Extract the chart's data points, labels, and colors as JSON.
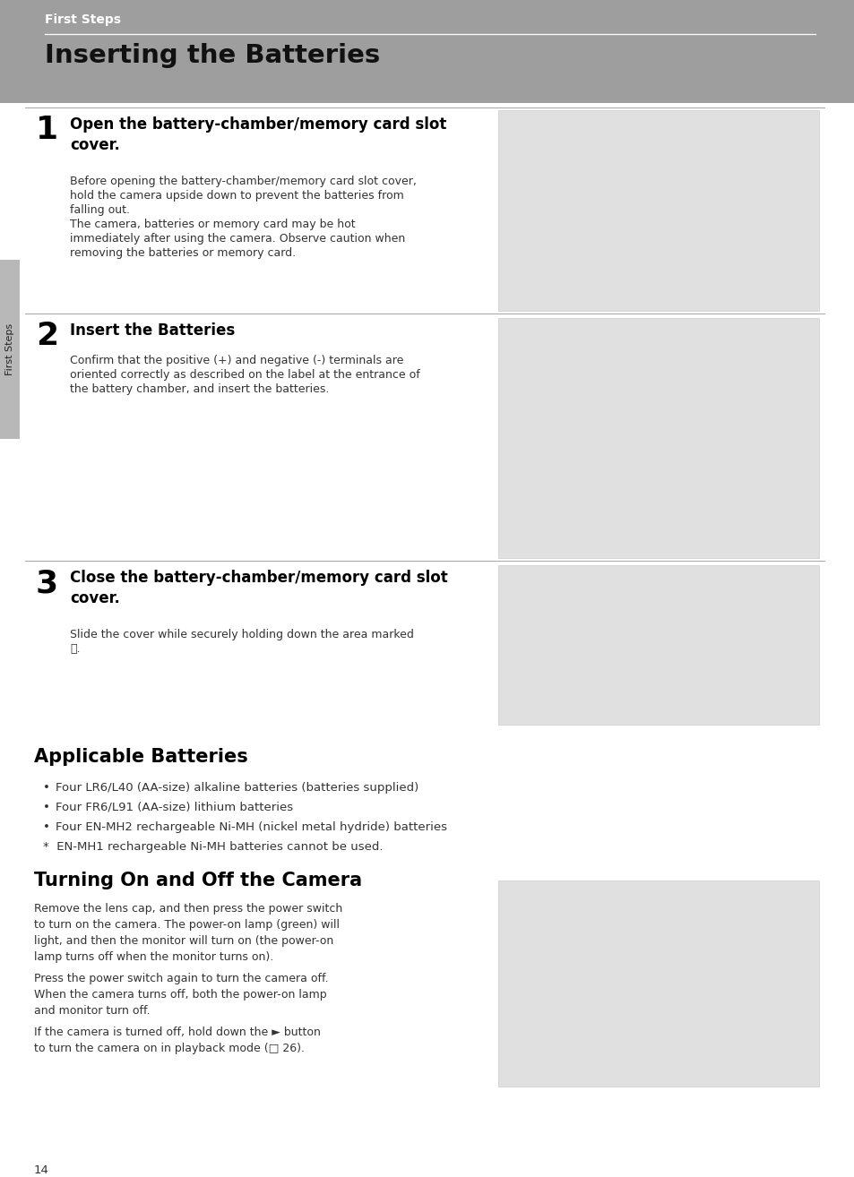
{
  "page_bg": "#ffffff",
  "header_bg": "#9e9e9e",
  "header_text": "First Steps",
  "header_text_color": "#ffffff",
  "title_text": "Inserting the Batteries",
  "title_color": "#111111",
  "sidebar_bg": "#b8b8b8",
  "sidebar_text": "First Steps",
  "sidebar_text_color": "#222222",
  "step1_num": "1",
  "step1_heading": "Open the battery-chamber/memory card slot\ncover.",
  "step1_body_lines": [
    "Before opening the battery-chamber/memory card slot cover,",
    "hold the camera upside down to prevent the batteries from",
    "falling out.",
    "The camera, batteries or memory card may be hot",
    "immediately after using the camera. Observe caution when",
    "removing the batteries or memory card."
  ],
  "step2_num": "2",
  "step2_heading": "Insert the Batteries",
  "step2_body_lines": [
    "Confirm that the positive (+) and negative (-) terminals are",
    "oriented correctly as described on the label at the entrance of",
    "the battery chamber, and insert the batteries."
  ],
  "step3_num": "3",
  "step3_heading": "Close the battery-chamber/memory card slot\ncover.",
  "step3_body_lines": [
    "Slide the cover while securely holding down the area marked",
    "Ⓐ."
  ],
  "section2_title": "Applicable Batteries",
  "bullets": [
    "Four LR6/L40 (AA-size) alkaline batteries (batteries supplied)",
    "Four FR6/L91 (AA-size) lithium batteries",
    "Four EN-MH2 rechargeable Ni-MH (nickel metal hydride) batteries"
  ],
  "note": "*  EN-MH1 rechargeable Ni-MH batteries cannot be used.",
  "section3_title": "Turning On and Off the Camera",
  "turning_body_lines": [
    "Remove the lens cap, and then press the power switch",
    "to turn on the camera. The power-on lamp (green) will",
    "light, and then the monitor will turn on (the power-on",
    "lamp turns off when the monitor turns on).",
    "Press the power switch again to turn the camera off.",
    "When the camera turns off, both the power-on lamp",
    "and monitor turn off.",
    "If the camera is turned off, hold down the ► button",
    "to turn the camera on in playback mode (□ 26)."
  ],
  "page_num": "14",
  "divider_color": "#aaaaaa",
  "header_divider_color": "#dddddd",
  "img_edge": "#cccccc",
  "img_fill": "#e0e0e0"
}
